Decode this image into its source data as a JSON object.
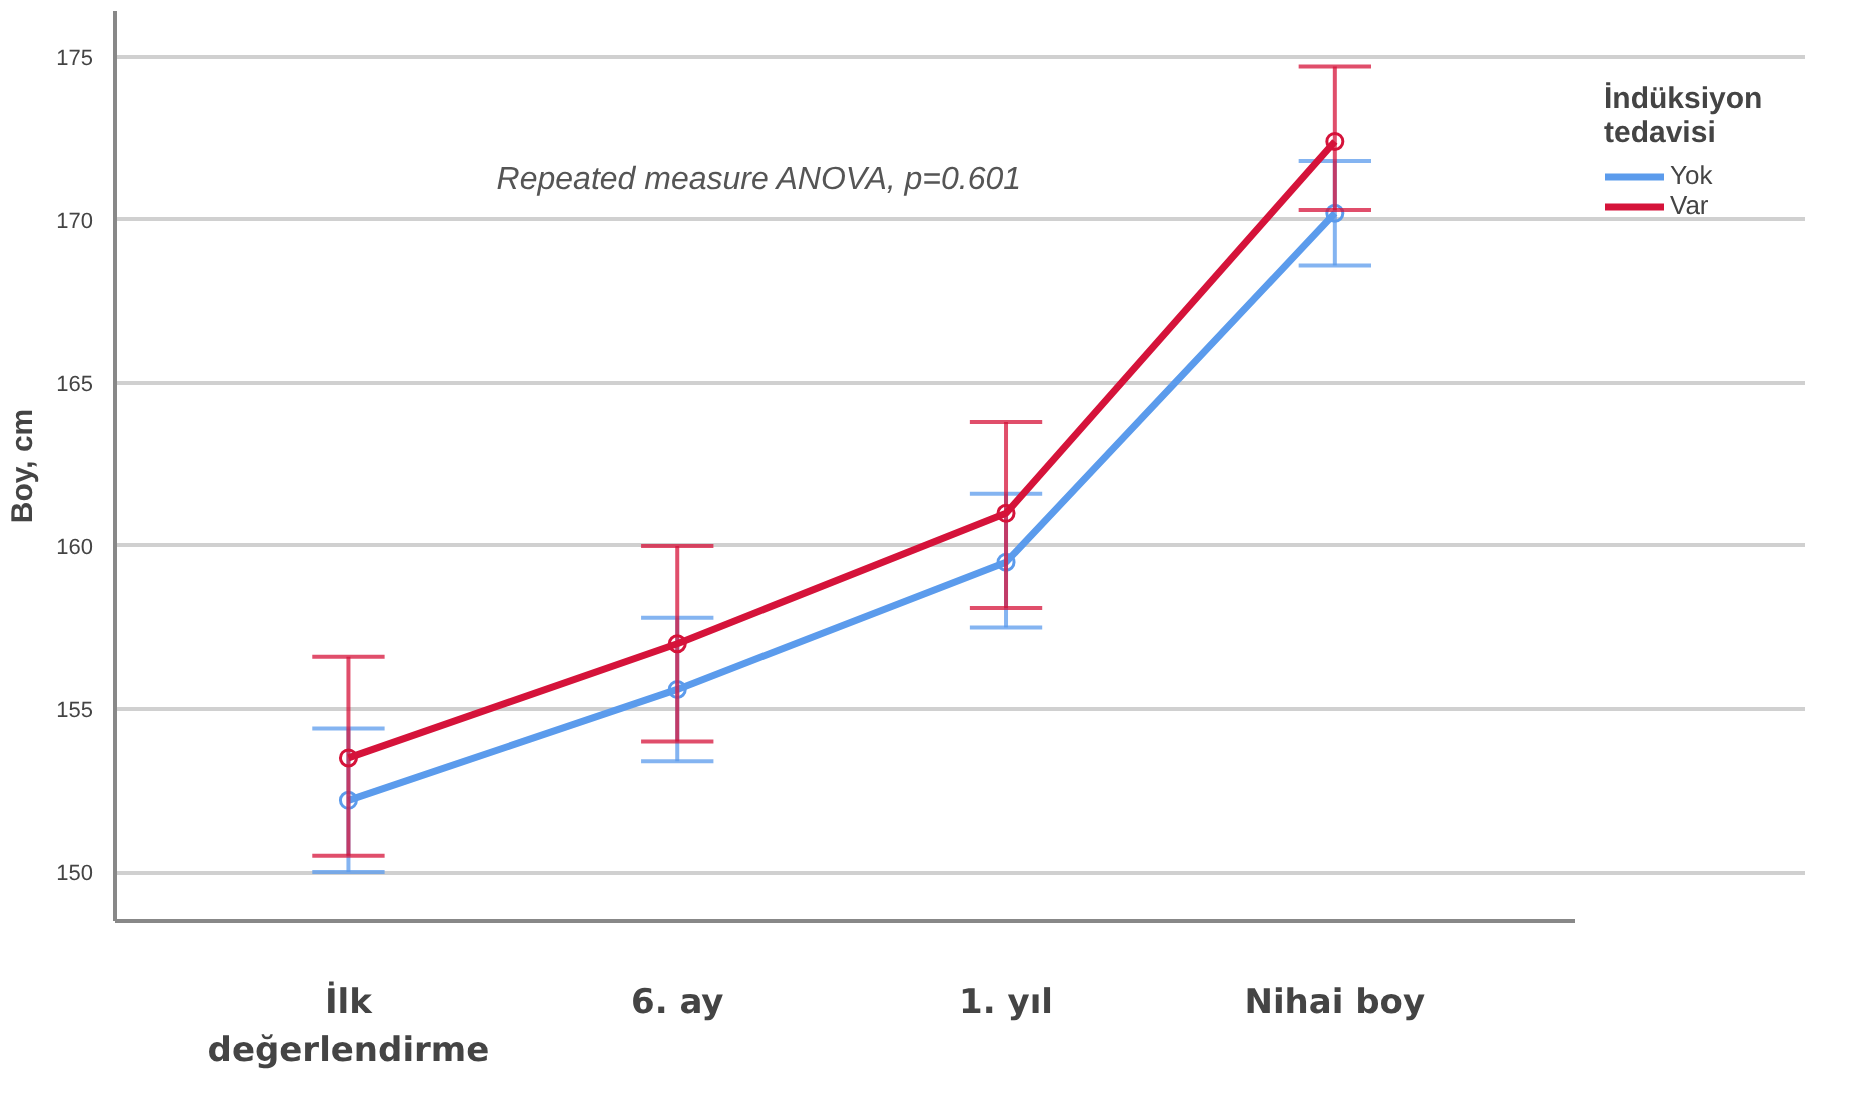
{
  "chart_data": {
    "type": "line",
    "ylabel": "Boy, cm",
    "legend_title": "İndüksiyon tedavisi",
    "categories": [
      "İlk değerlendirme",
      "6. ay",
      "1. yıl",
      "Nihai boy"
    ],
    "series": [
      {
        "name": "Yok",
        "color": "#5b9bec",
        "values": [
          152.2,
          155.6,
          159.5,
          170.2
        ],
        "errors": [
          [
            150.0,
            154.4
          ],
          [
            153.4,
            157.8
          ],
          [
            157.5,
            161.6
          ],
          [
            168.6,
            171.8
          ]
        ]
      },
      {
        "name": "Var",
        "color": "#d5133a",
        "values": [
          153.5,
          157.0,
          161.0,
          172.4
        ],
        "errors": [
          [
            150.5,
            156.6
          ],
          [
            154.0,
            160.0
          ],
          [
            158.1,
            163.8
          ],
          [
            170.3,
            174.7
          ]
        ]
      }
    ],
    "ylim": [
      148.5,
      176.4
    ],
    "yticks": [
      150,
      155,
      160,
      165,
      170,
      175
    ],
    "annotations": [
      "Repeated measure ANOVA, p=0.601"
    ],
    "grid": "y",
    "legend": "top right",
    "marker": "circle",
    "line_style": "solid"
  }
}
